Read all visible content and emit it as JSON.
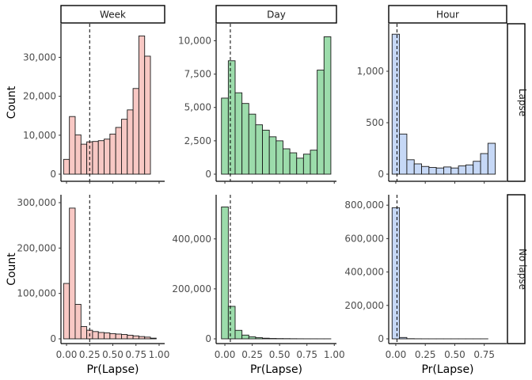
{
  "chart_data": {
    "type": "bar",
    "subtype": "faceted-histogram",
    "xlabel": "Pr(Lapse)",
    "ylabel": "Count",
    "grid": false,
    "columns": [
      "Week",
      "Day",
      "Hour"
    ],
    "rows": [
      "Lapse",
      "No lapse"
    ],
    "colors": {
      "Week": "#f8c8c4",
      "Day": "#9cdcab",
      "Hour": "#c6d8f6"
    },
    "threshold_line": {
      "style": "dashed",
      "x": {
        "Week": 0.25,
        "Day": 0.05,
        "Hour": 0.01
      }
    },
    "x_ticks": {
      "Week": [
        "0.00",
        "0.25",
        "0.50",
        "0.75",
        "1.00"
      ],
      "Day": [
        "0.00",
        "0.25",
        "0.50",
        "0.75",
        "1.00"
      ],
      "Hour": [
        "0.00",
        "0.25",
        "0.50",
        "0.75"
      ]
    },
    "x_tick_values": {
      "Week": [
        0,
        0.25,
        0.5,
        0.75,
        1.0
      ],
      "Day": [
        0,
        0.25,
        0.5,
        0.75,
        1.0
      ],
      "Hour": [
        0,
        0.25,
        0.5,
        0.75
      ]
    },
    "panels": [
      {
        "column": "Week",
        "row": "Lapse",
        "bin_width": 0.0625,
        "first_bin_center": 0.0,
        "values": [
          3800,
          14800,
          10100,
          7700,
          8300,
          8400,
          8600,
          9000,
          10300,
          12000,
          14100,
          16500,
          22000,
          35500,
          30300
        ],
        "ylim": [
          0,
          37000
        ],
        "y_ticks": [
          "0",
          "10,000",
          "20,000",
          "30,000"
        ],
        "y_tick_values": [
          0,
          10000,
          20000,
          30000
        ]
      },
      {
        "column": "Day",
        "row": "Lapse",
        "bin_width": 0.0625,
        "first_bin_center": 0.0,
        "values": [
          5700,
          8500,
          6100,
          5300,
          4500,
          3700,
          3300,
          2800,
          2500,
          1900,
          1600,
          1200,
          1500,
          1800,
          7800,
          10300
        ],
        "ylim": [
          0,
          10800
        ],
        "y_ticks": [
          "0",
          "2,500",
          "5,000",
          "7,500",
          "10,000"
        ],
        "y_tick_values": [
          0,
          2500,
          5000,
          7500,
          10000
        ]
      },
      {
        "column": "Hour",
        "row": "Lapse",
        "bin_width": 0.0625,
        "first_bin_center": 0.0,
        "values": [
          1360,
          390,
          140,
          100,
          75,
          65,
          60,
          70,
          60,
          80,
          90,
          125,
          200,
          300
        ],
        "ylim": [
          0,
          1400
        ],
        "y_ticks": [
          "0",
          "500",
          "1,000"
        ],
        "y_tick_values": [
          0,
          500,
          1000
        ]
      },
      {
        "column": "Week",
        "row": "No lapse",
        "bin_width": 0.0625,
        "first_bin_center": 0.0,
        "values": [
          122000,
          288000,
          76000,
          27000,
          19000,
          16000,
          14000,
          13000,
          11500,
          10500,
          9500,
          8000,
          6500,
          5000,
          3800,
          1500
        ],
        "ylim": [
          0,
          300000
        ],
        "y_ticks": [
          "0",
          "100,000",
          "200,000",
          "300,000"
        ],
        "y_tick_values": [
          0,
          100000,
          200000,
          300000
        ]
      },
      {
        "column": "Day",
        "row": "No lapse",
        "bin_width": 0.0625,
        "first_bin_center": 0.0,
        "values": [
          528000,
          130000,
          34000,
          15000,
          8000,
          4500,
          2500,
          1500,
          1000,
          800,
          500,
          300,
          200,
          150,
          100,
          100
        ],
        "ylim": [
          0,
          545000
        ],
        "y_ticks": [
          "0",
          "200,000",
          "400,000"
        ],
        "y_tick_values": [
          0,
          200000,
          400000
        ]
      },
      {
        "column": "Hour",
        "row": "No lapse",
        "bin_width": 0.0625,
        "first_bin_center": 0.0,
        "values": [
          785000,
          8000,
          1000,
          400,
          200,
          100,
          80,
          60,
          50,
          40,
          30,
          30,
          30,
          20
        ],
        "ylim": [
          0,
          815000
        ],
        "y_ticks": [
          "0",
          "200,000",
          "400,000",
          "600,000",
          "800,000"
        ],
        "y_tick_values": [
          0,
          200000,
          400000,
          600000,
          800000
        ]
      }
    ]
  }
}
